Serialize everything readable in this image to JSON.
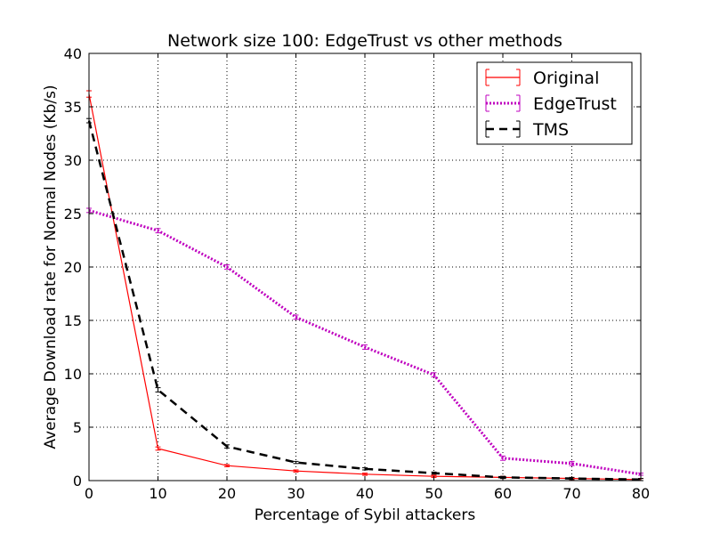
{
  "chart_data": {
    "type": "line",
    "title": "Network size 100: EdgeTrust vs other methods",
    "xlabel": "Percentage of Sybil attackers",
    "ylabel": "Average Download rate for Normal Nodes (Kb/s)",
    "xlim": [
      0,
      80
    ],
    "ylim": [
      0,
      40
    ],
    "xticks": [
      0,
      10,
      20,
      30,
      40,
      50,
      60,
      70,
      80
    ],
    "yticks": [
      0,
      5,
      10,
      15,
      20,
      25,
      30,
      35,
      40
    ],
    "grid": true,
    "legend_position": "top-right",
    "x": [
      0,
      10,
      20,
      30,
      40,
      50,
      60,
      70,
      80
    ],
    "series": [
      {
        "name": "Original",
        "color": "#ff0000",
        "style": "solid",
        "values": [
          36.2,
          3.0,
          1.4,
          0.9,
          0.6,
          0.4,
          0.3,
          0.2,
          0.1
        ],
        "errors": [
          0.3,
          0.15,
          0.1,
          0.1,
          0.1,
          0.1,
          0.1,
          0.1,
          0.1
        ]
      },
      {
        "name": "EdgeTrust",
        "color": "#bf00bf",
        "style": "dotted",
        "values": [
          25.3,
          23.4,
          20.0,
          15.3,
          12.5,
          9.9,
          2.1,
          1.6,
          0.6
        ],
        "errors": [
          0.2,
          0.2,
          0.2,
          0.2,
          0.2,
          0.2,
          0.2,
          0.2,
          0.1
        ]
      },
      {
        "name": "TMS",
        "color": "#000000",
        "style": "dashed",
        "values": [
          33.7,
          8.5,
          3.2,
          1.7,
          1.1,
          0.7,
          0.3,
          0.2,
          0.1
        ],
        "errors": [
          0.2,
          0.2,
          0.15,
          0.1,
          0.1,
          0.1,
          0.1,
          0.1,
          0.1
        ]
      }
    ]
  }
}
